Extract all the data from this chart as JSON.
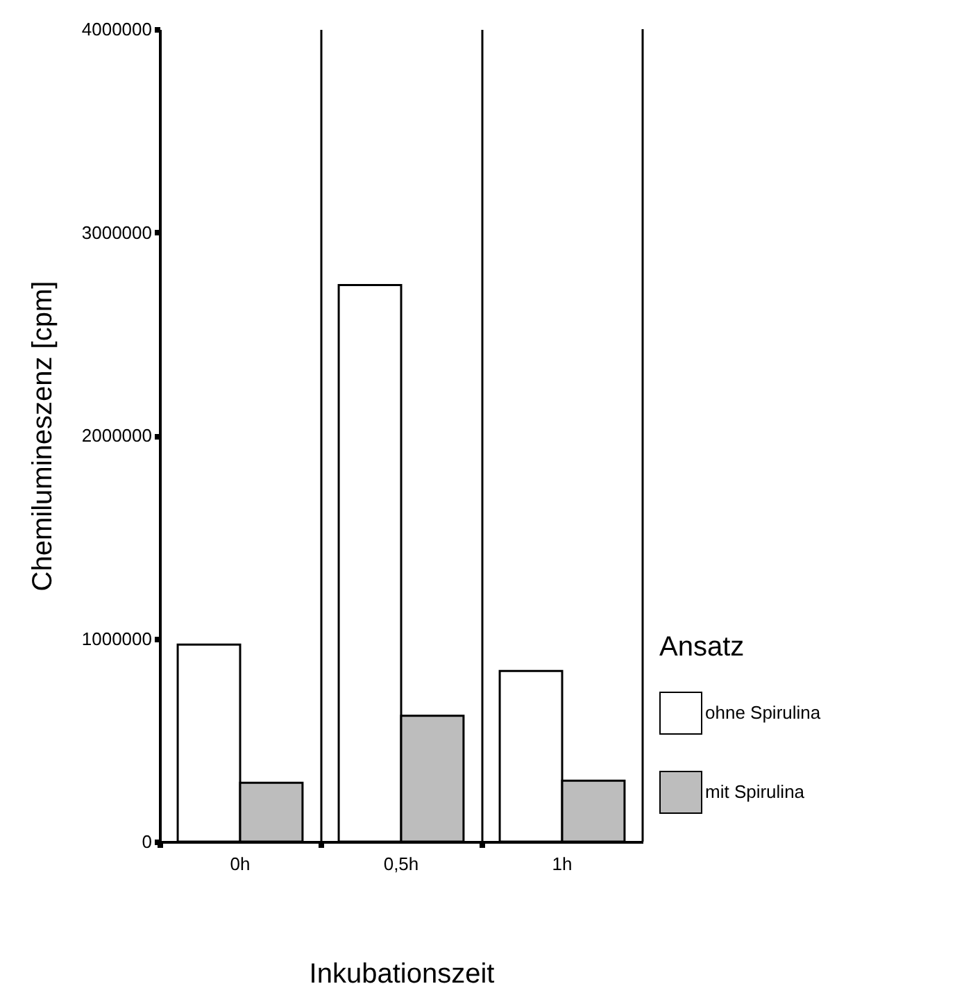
{
  "chart_data": {
    "type": "bar",
    "xlabel": "Inkubationszeit",
    "ylabel": "Chemilumineszenz [cpm]",
    "legend_title": "Ansatz",
    "categories": [
      "0h",
      "0,5h",
      "1h"
    ],
    "series": [
      {
        "name": "ohne Spirulina",
        "color": "#ffffff",
        "values": [
          970000,
          2740000,
          840000
        ]
      },
      {
        "name": "mit Spirulina",
        "color": "#bdbdbd",
        "values": [
          290000,
          620000,
          300000
        ]
      }
    ],
    "ylim": [
      0,
      4000000
    ],
    "yticks": [
      0,
      1000000,
      2000000,
      3000000,
      4000000
    ],
    "grid": "x",
    "legend": "right"
  }
}
